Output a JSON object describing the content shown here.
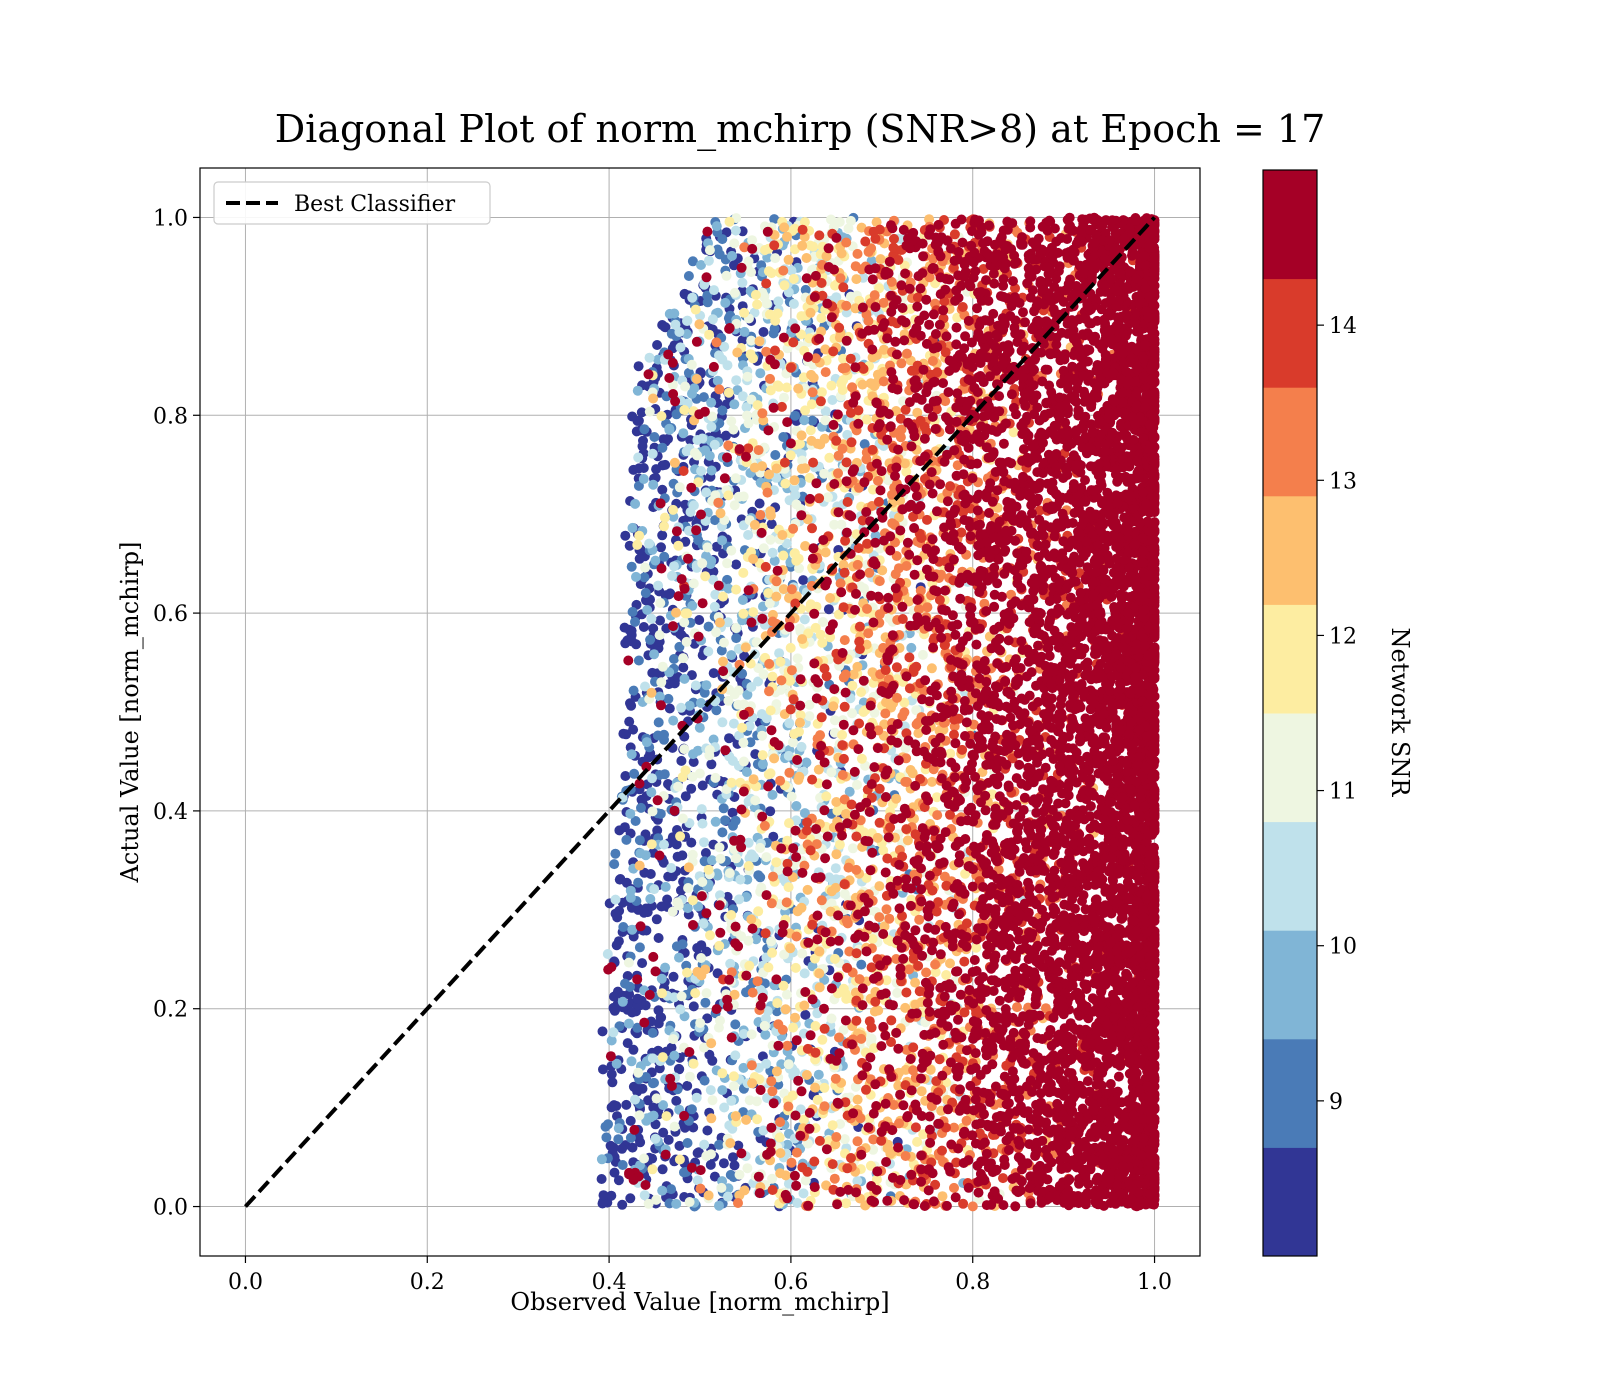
{
  "chart_data": {
    "type": "scatter",
    "title": "Diagonal Plot of norm_mchirp (SNR>8) at Epoch = 17",
    "xlabel": "Observed Value [norm_mchirp]",
    "ylabel": "Actual Value [norm_mchirp]",
    "xlim": [
      -0.05,
      1.05
    ],
    "ylim": [
      -0.05,
      1.05
    ],
    "xticks": [
      "0.0",
      "0.2",
      "0.4",
      "0.6",
      "0.8",
      "1.0"
    ],
    "yticks": [
      "0.0",
      "0.2",
      "0.4",
      "0.6",
      "0.8",
      "1.0"
    ],
    "xtick_values": [
      0.0,
      0.2,
      0.4,
      0.6,
      0.8,
      1.0
    ],
    "ytick_values": [
      0.0,
      0.2,
      0.4,
      0.6,
      0.8,
      1.0
    ],
    "grid": true,
    "legend": {
      "placement": "top-left",
      "entries": [
        "Best Classifier"
      ]
    },
    "reference_line": {
      "name": "Best Classifier",
      "style": "dashed",
      "color": "#000000",
      "x": [
        0.0,
        1.0
      ],
      "y": [
        0.0,
        1.0
      ]
    },
    "colorbar": {
      "label": "Network SNR",
      "range": [
        8,
        15
      ],
      "ticks": [
        "9",
        "10",
        "11",
        "12",
        "13",
        "14"
      ],
      "tick_values": [
        9,
        10,
        11,
        12,
        13,
        14
      ],
      "boundaries": [
        8,
        8.7,
        9.4,
        10.1,
        10.8,
        11.5,
        12.2,
        12.9,
        13.6,
        14.3,
        15
      ],
      "colors": [
        "#313695",
        "#4a7bb7",
        "#80b5d6",
        "#bfe1eb",
        "#eef6e1",
        "#fdeda1",
        "#fdbf6f",
        "#f47f4c",
        "#d93b2b",
        "#a50026"
      ]
    },
    "scatter": {
      "color_by": "Network SNR",
      "x_range": [
        0.38,
        1.0
      ],
      "y_range": [
        0.0,
        1.0
      ],
      "point_count_estimate": 30000,
      "description_points": [
        {
          "x": 0.45,
          "y": 0.92,
          "snr": 8.3
        },
        {
          "x": 0.5,
          "y": 0.6,
          "snr": 9.0
        },
        {
          "x": 0.55,
          "y": 0.3,
          "snr": 10.5
        },
        {
          "x": 0.65,
          "y": 0.15,
          "snr": 12.0
        },
        {
          "x": 0.75,
          "y": 0.5,
          "snr": 13.0
        },
        {
          "x": 0.9,
          "y": 0.5,
          "snr": 14.8
        }
      ]
    }
  }
}
